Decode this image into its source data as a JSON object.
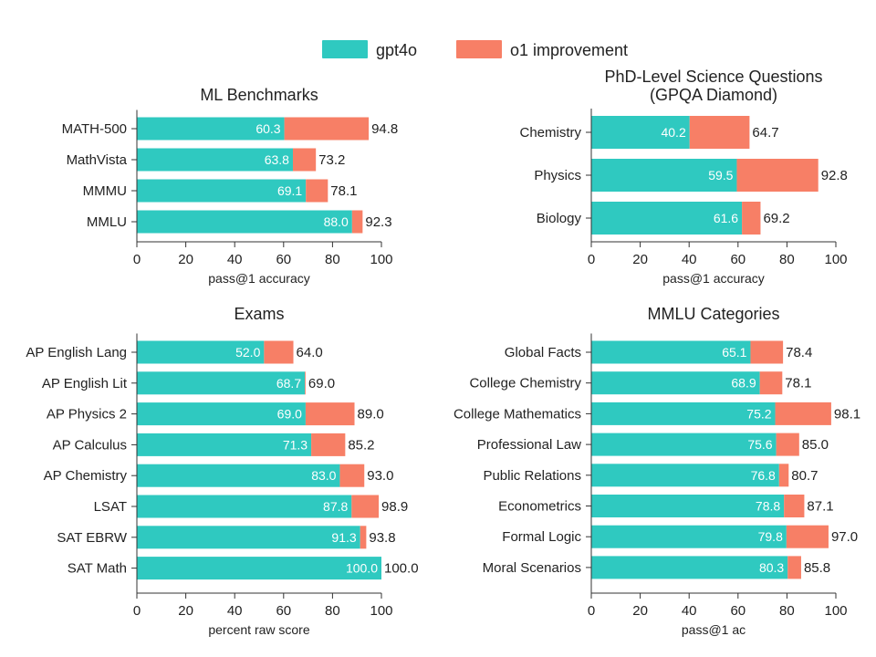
{
  "colors": {
    "gpt4o": "#2fc9c0",
    "o1": "#f77f66"
  },
  "legend": [
    {
      "key": "gpt4o",
      "label": "gpt4o"
    },
    {
      "key": "o1",
      "label": "o1 improvement"
    }
  ],
  "chart_data": [
    {
      "type": "bar",
      "title": "ML Benchmarks",
      "xlabel": "pass@1 accuracy",
      "xlim": [
        0,
        100
      ],
      "ticks": [
        0,
        20,
        40,
        60,
        80,
        100
      ],
      "categories": [
        "MATH-500",
        "MathVista",
        "MMMU",
        "MMLU"
      ],
      "series": [
        {
          "name": "gpt4o",
          "values": [
            60.3,
            63.8,
            69.1,
            88.0
          ]
        },
        {
          "name": "o1 improvement",
          "values": [
            94.8,
            73.2,
            78.1,
            92.3
          ]
        }
      ],
      "labels_base": [
        "60.3",
        "63.8",
        "69.1",
        "88.0"
      ],
      "labels_total": [
        "94.8",
        "73.2",
        "78.1",
        "92.3"
      ]
    },
    {
      "type": "bar",
      "title": "PhD-Level Science Questions",
      "subtitle": "(GPQA Diamond)",
      "xlabel": "pass@1 accuracy",
      "xlim": [
        0,
        100
      ],
      "ticks": [
        0,
        20,
        40,
        60,
        80,
        100
      ],
      "categories": [
        "Chemistry",
        "Physics",
        "Biology"
      ],
      "series": [
        {
          "name": "gpt4o",
          "values": [
            40.2,
            59.5,
            61.6
          ]
        },
        {
          "name": "o1 improvement",
          "values": [
            64.7,
            92.8,
            69.2
          ]
        }
      ],
      "labels_base": [
        "40.2",
        "59.5",
        "61.6"
      ],
      "labels_total": [
        "64.7",
        "92.8",
        "69.2"
      ]
    },
    {
      "type": "bar",
      "title": "Exams",
      "xlabel": "percent raw score",
      "xlim": [
        0,
        100
      ],
      "ticks": [
        0,
        20,
        40,
        60,
        80,
        100
      ],
      "categories": [
        "AP English Lang",
        "AP English Lit",
        "AP Physics 2",
        "AP Calculus",
        "AP Chemistry",
        "LSAT",
        "SAT EBRW",
        "SAT Math"
      ],
      "series": [
        {
          "name": "gpt4o",
          "values": [
            52.0,
            68.7,
            69.0,
            71.3,
            83.0,
            87.8,
            91.3,
            100.0
          ]
        },
        {
          "name": "o1 improvement",
          "values": [
            64.0,
            69.0,
            89.0,
            85.2,
            93.0,
            98.9,
            93.8,
            100.0
          ]
        }
      ],
      "labels_base": [
        "52.0",
        "68.7",
        "69.0",
        "71.3",
        "83.0",
        "87.8",
        "91.3",
        "100.0"
      ],
      "labels_total": [
        "64.0",
        "69.0",
        "89.0",
        "85.2",
        "93.0",
        "98.9",
        "93.8",
        "100.0"
      ]
    },
    {
      "type": "bar",
      "title": "MMLU Categories",
      "xlabel": "pass@1 ac",
      "xlim": [
        0,
        100
      ],
      "ticks": [
        0,
        20,
        40,
        60,
        80,
        100
      ],
      "categories": [
        "Global Facts",
        "College Chemistry",
        "College Mathematics",
        "Professional Law",
        "Public Relations",
        "Econometrics",
        "Formal Logic",
        "Moral Scenarios"
      ],
      "series": [
        {
          "name": "gpt4o",
          "values": [
            65.1,
            68.9,
            75.2,
            75.6,
            76.8,
            78.8,
            79.8,
            80.3
          ]
        },
        {
          "name": "o1 improvement",
          "values": [
            78.4,
            78.1,
            98.1,
            85.0,
            80.7,
            87.1,
            97.0,
            85.8
          ]
        }
      ],
      "labels_base": [
        "65.1",
        "68.9",
        "75.2",
        "75.6",
        "76.8",
        "78.8",
        "79.8",
        "80.3"
      ],
      "labels_total": [
        "78.4",
        "78.1",
        "98.1",
        "85.0",
        "80.7",
        "87.1",
        "97.0",
        "85.8"
      ]
    }
  ]
}
